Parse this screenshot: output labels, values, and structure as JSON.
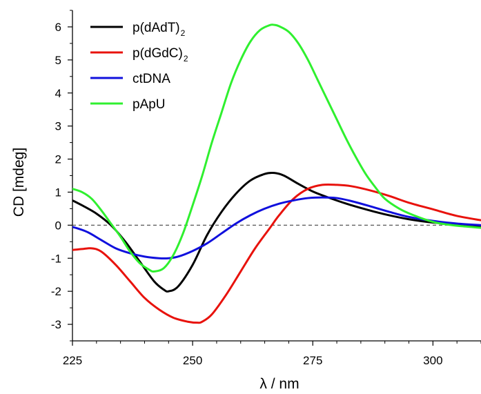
{
  "chart_data": {
    "type": "line",
    "xlabel": "λ / nm",
    "ylabel": "CD [mdeg]",
    "xlim": [
      225,
      310
    ],
    "ylim": [
      -3.5,
      6.5
    ],
    "xticks": [
      225,
      250,
      275,
      300
    ],
    "xtick_labels": [
      "225",
      "250",
      "275",
      "300"
    ],
    "yticks": [
      -3,
      -2,
      -1,
      0,
      1,
      2,
      3,
      4,
      5,
      6
    ],
    "ytick_labels": [
      "-3",
      "-2",
      "-1",
      "0",
      "1",
      "2",
      "3",
      "4",
      "5",
      "6"
    ],
    "zero_line": true,
    "grid": false,
    "legend_position": "top-left",
    "legend": [
      {
        "main": "p(dAdT)",
        "sub": "2",
        "color": "#000000"
      },
      {
        "main": "p(dGdC)",
        "sub": "2",
        "color": "#e8120c"
      },
      {
        "main": "ctDNA",
        "sub": "",
        "color": "#1010dd"
      },
      {
        "main": "pApU",
        "sub": "",
        "color": "#2ff02f"
      }
    ],
    "series": [
      {
        "color": "#000000",
        "points": [
          [
            225,
            0.75
          ],
          [
            227,
            0.6
          ],
          [
            230,
            0.35
          ],
          [
            233,
            0.0
          ],
          [
            236,
            -0.5
          ],
          [
            239,
            -1.1
          ],
          [
            242,
            -1.7
          ],
          [
            244,
            -1.95
          ],
          [
            245,
            -2.0
          ],
          [
            247,
            -1.85
          ],
          [
            250,
            -1.2
          ],
          [
            253,
            -0.3
          ],
          [
            256,
            0.4
          ],
          [
            259,
            0.95
          ],
          [
            262,
            1.35
          ],
          [
            265,
            1.55
          ],
          [
            267,
            1.58
          ],
          [
            269,
            1.5
          ],
          [
            272,
            1.25
          ],
          [
            275,
            1.02
          ],
          [
            278,
            0.85
          ],
          [
            282,
            0.65
          ],
          [
            286,
            0.48
          ],
          [
            290,
            0.33
          ],
          [
            295,
            0.18
          ],
          [
            300,
            0.08
          ],
          [
            305,
            0.02
          ],
          [
            310,
            -0.02
          ]
        ]
      },
      {
        "color": "#e8120c",
        "points": [
          [
            225,
            -0.75
          ],
          [
            227,
            -0.72
          ],
          [
            229,
            -0.7
          ],
          [
            231,
            -0.8
          ],
          [
            234,
            -1.2
          ],
          [
            237,
            -1.7
          ],
          [
            240,
            -2.2
          ],
          [
            243,
            -2.55
          ],
          [
            246,
            -2.8
          ],
          [
            249,
            -2.92
          ],
          [
            251,
            -2.95
          ],
          [
            252,
            -2.92
          ],
          [
            254,
            -2.7
          ],
          [
            257,
            -2.1
          ],
          [
            260,
            -1.4
          ],
          [
            263,
            -0.7
          ],
          [
            266,
            -0.1
          ],
          [
            268,
            0.3
          ],
          [
            271,
            0.8
          ],
          [
            274,
            1.1
          ],
          [
            277,
            1.22
          ],
          [
            280,
            1.22
          ],
          [
            283,
            1.18
          ],
          [
            287,
            1.05
          ],
          [
            291,
            0.88
          ],
          [
            295,
            0.68
          ],
          [
            300,
            0.48
          ],
          [
            305,
            0.28
          ],
          [
            310,
            0.15
          ]
        ]
      },
      {
        "color": "#1010dd",
        "points": [
          [
            225,
            -0.05
          ],
          [
            228,
            -0.2
          ],
          [
            231,
            -0.45
          ],
          [
            234,
            -0.7
          ],
          [
            237,
            -0.85
          ],
          [
            240,
            -0.95
          ],
          [
            243,
            -1.0
          ],
          [
            245,
            -1.0
          ],
          [
            247,
            -0.95
          ],
          [
            250,
            -0.78
          ],
          [
            253,
            -0.55
          ],
          [
            256,
            -0.25
          ],
          [
            259,
            0.05
          ],
          [
            262,
            0.3
          ],
          [
            265,
            0.5
          ],
          [
            268,
            0.65
          ],
          [
            271,
            0.75
          ],
          [
            274,
            0.82
          ],
          [
            277,
            0.84
          ],
          [
            280,
            0.82
          ],
          [
            283,
            0.73
          ],
          [
            287,
            0.57
          ],
          [
            291,
            0.4
          ],
          [
            295,
            0.25
          ],
          [
            300,
            0.13
          ],
          [
            305,
            0.05
          ],
          [
            310,
            0.0
          ]
        ]
      },
      {
        "color": "#2ff02f",
        "points": [
          [
            225,
            1.1
          ],
          [
            227,
            1.0
          ],
          [
            229,
            0.8
          ],
          [
            231,
            0.45
          ],
          [
            233,
            0.05
          ],
          [
            235,
            -0.35
          ],
          [
            237,
            -0.8
          ],
          [
            239,
            -1.15
          ],
          [
            241,
            -1.35
          ],
          [
            242,
            -1.4
          ],
          [
            244,
            -1.3
          ],
          [
            246,
            -0.9
          ],
          [
            248,
            -0.25
          ],
          [
            250,
            0.6
          ],
          [
            252,
            1.5
          ],
          [
            254,
            2.5
          ],
          [
            256,
            3.4
          ],
          [
            258,
            4.3
          ],
          [
            260,
            5.0
          ],
          [
            262,
            5.55
          ],
          [
            264,
            5.9
          ],
          [
            266,
            6.05
          ],
          [
            267,
            6.06
          ],
          [
            268,
            6.02
          ],
          [
            270,
            5.85
          ],
          [
            272,
            5.5
          ],
          [
            274,
            5.0
          ],
          [
            276,
            4.4
          ],
          [
            278,
            3.8
          ],
          [
            280,
            3.2
          ],
          [
            282,
            2.6
          ],
          [
            284,
            2.05
          ],
          [
            286,
            1.55
          ],
          [
            288,
            1.15
          ],
          [
            290,
            0.8
          ],
          [
            293,
            0.5
          ],
          [
            296,
            0.3
          ],
          [
            300,
            0.1
          ],
          [
            303,
            0.02
          ],
          [
            306,
            -0.03
          ],
          [
            310,
            -0.08
          ]
        ]
      }
    ]
  }
}
